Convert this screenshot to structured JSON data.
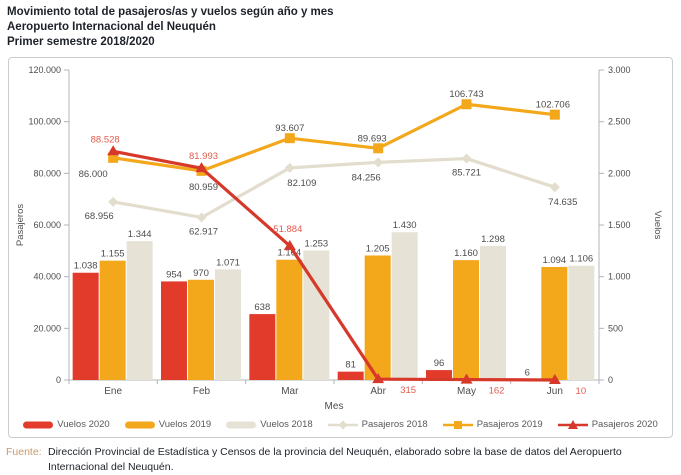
{
  "header": {
    "title_line1": "Movimiento total de pasajeros/as y vuelos según año y mes",
    "title_line2": "Aeropuerto Internacional del Neuquén",
    "title_line3": "Primer semestre 2018/2020"
  },
  "chart_data": {
    "type": "combo-bar-line",
    "categories": [
      "Ene",
      "Feb",
      "Mar",
      "Abr",
      "May",
      "Jun"
    ],
    "xlabel": "Mes",
    "ylabel_left": "Pasajeros",
    "ylabel_right": "Vuelos",
    "y_left": {
      "min": 0,
      "max": 120000,
      "ticks": [
        "0",
        "20.000",
        "40.000",
        "60.000",
        "80.000",
        "100.000",
        "120.000"
      ]
    },
    "y_right": {
      "min": 0,
      "max": 3000,
      "ticks": [
        "0",
        "500",
        "1.000",
        "1.500",
        "2.000",
        "2.500",
        "3.000"
      ]
    },
    "grid": false,
    "legend_position": "bottom",
    "bar_series": [
      {
        "name": "Vuelos 2020",
        "axis": "right",
        "color": "#e23b2b",
        "values": [
          1038,
          954,
          638,
          81,
          96,
          6
        ],
        "labels": [
          "1.038",
          "954",
          "638",
          "81",
          "96",
          "6"
        ],
        "label_color": "#4d4d4d"
      },
      {
        "name": "Vuelos 2019",
        "axis": "right",
        "color": "#f3a71b",
        "values": [
          1155,
          970,
          1164,
          1205,
          1160,
          1094
        ],
        "labels": [
          "1.155",
          "970",
          "1.164",
          "1.205",
          "1.160",
          "1.094"
        ],
        "label_color": "#4d4d4d"
      },
      {
        "name": "Vuelos 2018",
        "axis": "right",
        "color": "#e6e3d6",
        "values": [
          1344,
          1071,
          1253,
          1430,
          1298,
          1106
        ],
        "labels": [
          "1.344",
          "1.071",
          "1.253",
          "1.430",
          "1.298",
          "1.106"
        ],
        "label_color": "#4d4d4d"
      }
    ],
    "line_series": [
      {
        "name": "Pasajeros 2018",
        "axis": "left",
        "color": "#e2ddcd",
        "marker": "diamond",
        "values": [
          68956,
          62917,
          82109,
          84256,
          85721,
          74635
        ],
        "labels": [
          "68.956",
          "62.917",
          "82.109",
          "84.256",
          "85.721",
          "74.635"
        ],
        "label_color": "#4d4d4d"
      },
      {
        "name": "Pasajeros 2019",
        "axis": "left",
        "color": "#f3a71b",
        "marker": "square",
        "values": [
          86000,
          80959,
          93607,
          89693,
          106743,
          102706
        ],
        "labels": [
          "86.000",
          "80.959",
          "93.607",
          "89.693",
          "106.743",
          "102.706"
        ],
        "label_color": "#4d4d4d"
      },
      {
        "name": "Pasajeros 2020",
        "axis": "left",
        "color": "#d6392a",
        "marker": "triangle",
        "values": [
          88528,
          81993,
          51884,
          315,
          162,
          10
        ],
        "labels": [
          "88.528",
          "81.993",
          "51.884",
          "315",
          "162",
          "10"
        ],
        "label_color": "#e25a4e"
      }
    ]
  },
  "footer": {
    "source_label": "Fuente:",
    "source_text": "Dirección Provincial de Estadística y Censos de la provincia del Neuquén, elaborado sobre la base de datos del Aeropuerto Internacional del Neuquén."
  }
}
